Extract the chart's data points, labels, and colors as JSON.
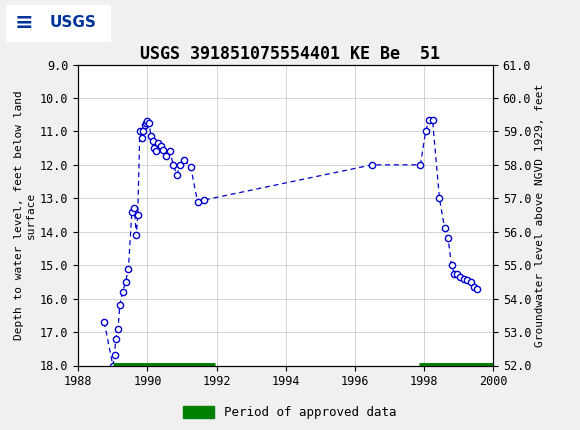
{
  "title": "USGS 391851075554401 KE Be  51",
  "ylabel_left": "Depth to water level, feet below land\nsurface",
  "ylabel_right": "Groundwater level above NGVD 1929, feet",
  "xlim": [
    1988,
    2000
  ],
  "ylim_left_top": 9.0,
  "ylim_left_bottom": 18.0,
  "ylim_right_top": 61.0,
  "ylim_right_bottom": 52.0,
  "xticks": [
    1988,
    1990,
    1992,
    1994,
    1996,
    1998,
    2000
  ],
  "yticks_left": [
    9.0,
    10.0,
    11.0,
    12.0,
    13.0,
    14.0,
    15.0,
    16.0,
    17.0,
    18.0
  ],
  "yticks_right": [
    61.0,
    60.0,
    59.0,
    58.0,
    57.0,
    56.0,
    55.0,
    54.0,
    53.0,
    52.0
  ],
  "data_x": [
    1988.75,
    1989.0,
    1989.05,
    1989.08,
    1989.15,
    1989.2,
    1989.28,
    1989.37,
    1989.45,
    1989.55,
    1989.62,
    1989.68,
    1989.72,
    1989.78,
    1989.83,
    1989.88,
    1989.92,
    1989.97,
    1990.0,
    1990.05,
    1990.1,
    1990.15,
    1990.2,
    1990.25,
    1990.3,
    1990.38,
    1990.45,
    1990.55,
    1990.65,
    1990.75,
    1990.85,
    1990.95,
    1991.05,
    1991.25,
    1991.45,
    1991.65,
    1996.5,
    1997.9,
    1998.05,
    1998.15,
    1998.25,
    1998.45,
    1998.6,
    1998.7,
    1998.8,
    1998.88,
    1998.95,
    1999.05,
    1999.15,
    1999.25,
    1999.35,
    1999.45,
    1999.55
  ],
  "data_y": [
    16.7,
    18.0,
    17.7,
    17.2,
    16.9,
    16.2,
    15.8,
    15.5,
    15.1,
    13.4,
    13.3,
    14.1,
    13.5,
    11.0,
    11.2,
    11.0,
    10.8,
    10.75,
    10.7,
    10.75,
    11.15,
    11.3,
    11.5,
    11.6,
    11.35,
    11.45,
    11.55,
    11.75,
    11.6,
    12.0,
    12.3,
    12.0,
    11.85,
    12.05,
    13.1,
    13.05,
    12.0,
    12.0,
    11.0,
    10.65,
    10.65,
    13.0,
    13.9,
    14.2,
    15.0,
    15.25,
    15.25,
    15.35,
    15.4,
    15.45,
    15.5,
    15.65,
    15.7
  ],
  "approved_bars": [
    {
      "x_start": 1989.0,
      "x_end": 1991.95
    },
    {
      "x_start": 1997.85,
      "x_end": 2000.0
    }
  ],
  "line_color": "#0000cc",
  "marker_color": "#0000cc",
  "approved_color": "#008000",
  "background_color": "#f0f0f0",
  "plot_bg_color": "#ffffff",
  "header_color": "#006633",
  "grid_color": "#cccccc",
  "title_fontsize": 12,
  "axis_label_fontsize": 8,
  "tick_fontsize": 8.5
}
